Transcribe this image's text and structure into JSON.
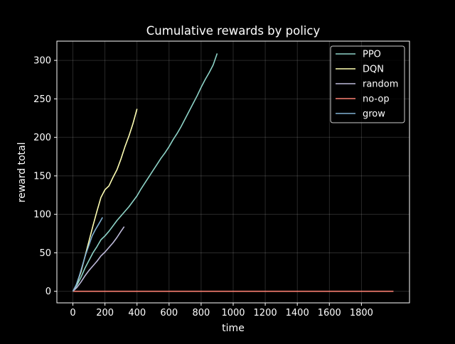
{
  "chart_data": {
    "type": "line",
    "title": "Cumulative rewards by policy",
    "xlabel": "time",
    "ylabel": "reward total",
    "xlim": [
      -100,
      2100
    ],
    "ylim": [
      -15,
      325
    ],
    "xticks": [
      0,
      200,
      400,
      600,
      800,
      1000,
      1200,
      1400,
      1600,
      1800
    ],
    "yticks": [
      0,
      50,
      100,
      150,
      200,
      250,
      300
    ],
    "grid": true,
    "legend_position": "top-right",
    "series": [
      {
        "name": "PPO",
        "color": "#8dd3c7",
        "x": [
          0,
          25,
          50,
          75,
          100,
          125,
          150,
          175,
          200,
          225,
          250,
          275,
          300,
          325,
          350,
          375,
          400,
          425,
          450,
          475,
          500,
          525,
          550,
          575,
          600,
          625,
          650,
          675,
          700,
          725,
          750,
          775,
          800,
          825,
          850,
          875,
          900
        ],
        "y": [
          0,
          8,
          18,
          30,
          40,
          50,
          58,
          67,
          72,
          78,
          85,
          92,
          98,
          104,
          110,
          117,
          124,
          133,
          141,
          149,
          157,
          165,
          173,
          180,
          188,
          197,
          205,
          214,
          224,
          234,
          244,
          254,
          265,
          275,
          284,
          294,
          309
        ]
      },
      {
        "name": "DQN",
        "color": "#ffffb3",
        "x": [
          0,
          25,
          50,
          75,
          100,
          125,
          150,
          175,
          200,
          225,
          250,
          275,
          300,
          325,
          350,
          375,
          400
        ],
        "y": [
          0,
          10,
          25,
          45,
          65,
          85,
          104,
          122,
          132,
          137,
          148,
          158,
          172,
          188,
          202,
          218,
          237
        ]
      },
      {
        "name": "random",
        "color": "#bebada",
        "x": [
          0,
          25,
          50,
          75,
          100,
          125,
          150,
          175,
          200,
          225,
          250,
          275,
          300,
          320
        ],
        "y": [
          0,
          5,
          12,
          20,
          27,
          33,
          39,
          46,
          51,
          57,
          63,
          70,
          78,
          84
        ]
      },
      {
        "name": "no-op",
        "color": "#fb8072",
        "x": [
          0,
          2000
        ],
        "y": [
          0,
          0
        ]
      },
      {
        "name": "grow",
        "color": "#80b1d3",
        "x": [
          0,
          20,
          40,
          60,
          80,
          100,
          120,
          140,
          160,
          185
        ],
        "y": [
          0,
          8,
          20,
          34,
          48,
          60,
          72,
          80,
          87,
          96
        ]
      }
    ]
  }
}
